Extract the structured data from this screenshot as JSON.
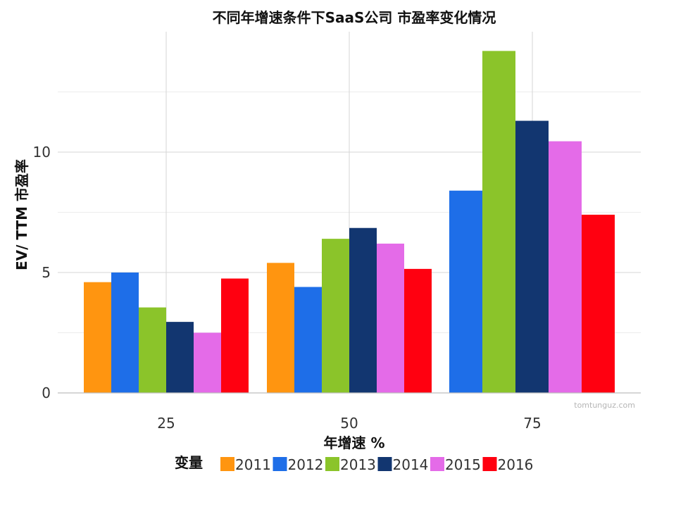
{
  "chart_data": {
    "type": "bar",
    "title": "不同年增速条件下SaaS公司 市盈率变化情况",
    "xlabel": "年增速 %",
    "ylabel": "EV/ TTM 市盈率",
    "categories": [
      "25",
      "50",
      "75"
    ],
    "yticks": [
      "0",
      "5",
      "10"
    ],
    "ylim": [
      0,
      15
    ],
    "grid": true,
    "legend_title": "变量",
    "legend_position": "bottom",
    "series": [
      {
        "name": "2011",
        "color": "#FF9510",
        "values": [
          4.6,
          5.4,
          null
        ]
      },
      {
        "name": "2012",
        "color": "#1E6EE8",
        "values": [
          5.0,
          4.4,
          8.4
        ]
      },
      {
        "name": "2013",
        "color": "#8BC42A",
        "values": [
          3.55,
          6.4,
          14.2
        ]
      },
      {
        "name": "2014",
        "color": "#123670",
        "values": [
          2.95,
          6.85,
          11.3
        ]
      },
      {
        "name": "2015",
        "color": "#E46BE8",
        "values": [
          2.5,
          6.2,
          10.45
        ]
      },
      {
        "name": "2016",
        "color": "#FF0010",
        "values": [
          4.75,
          5.15,
          7.4
        ]
      }
    ],
    "watermark": "tomtunguz.com"
  }
}
